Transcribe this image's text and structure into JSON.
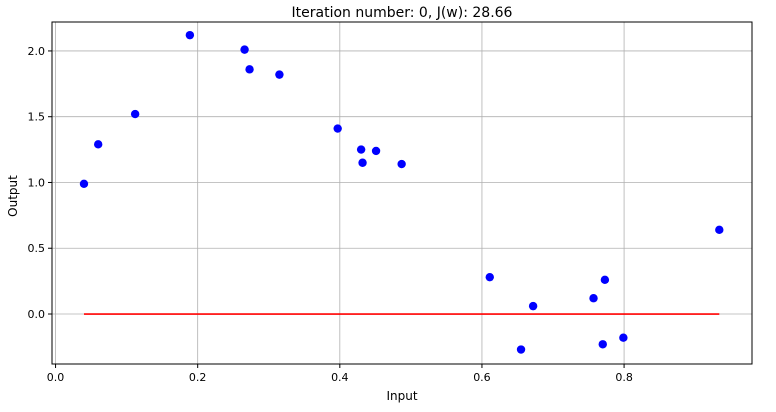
{
  "chart_data": {
    "type": "scatter",
    "title": "Iteration number: 0, J(w): 28.66",
    "xlabel": "Input",
    "ylabel": "Output",
    "xlim": [
      -0.005,
      0.98
    ],
    "ylim": [
      -0.38,
      2.22
    ],
    "xticks": [
      0.0,
      0.2,
      0.4,
      0.6,
      0.8
    ],
    "xtick_labels": [
      "0.0",
      "0.2",
      "0.4",
      "0.6",
      "0.8"
    ],
    "yticks": [
      0.0,
      0.5,
      1.0,
      1.5,
      2.0
    ],
    "ytick_labels": [
      "0.0",
      "0.5",
      "1.0",
      "1.5",
      "2.0"
    ],
    "grid": true,
    "points": [
      {
        "x": 0.04,
        "y": 0.99
      },
      {
        "x": 0.06,
        "y": 1.29
      },
      {
        "x": 0.112,
        "y": 1.52
      },
      {
        "x": 0.189,
        "y": 2.12
      },
      {
        "x": 0.266,
        "y": 2.01
      },
      {
        "x": 0.273,
        "y": 1.86
      },
      {
        "x": 0.315,
        "y": 1.82
      },
      {
        "x": 0.397,
        "y": 1.41
      },
      {
        "x": 0.43,
        "y": 1.25
      },
      {
        "x": 0.432,
        "y": 1.15
      },
      {
        "x": 0.451,
        "y": 1.24
      },
      {
        "x": 0.487,
        "y": 1.14
      },
      {
        "x": 0.611,
        "y": 0.28
      },
      {
        "x": 0.655,
        "y": -0.27
      },
      {
        "x": 0.672,
        "y": 0.06
      },
      {
        "x": 0.757,
        "y": 0.12
      },
      {
        "x": 0.77,
        "y": -0.23
      },
      {
        "x": 0.773,
        "y": 0.26
      },
      {
        "x": 0.799,
        "y": -0.18
      },
      {
        "x": 0.934,
        "y": 0.64
      }
    ],
    "fit_line": {
      "x": [
        0.04,
        0.934
      ],
      "y": [
        0.0,
        0.0
      ]
    },
    "colors": {
      "points": "#0000ff",
      "line": "#ff0000",
      "grid": "#b0b0b0",
      "axes": "#000000"
    }
  }
}
